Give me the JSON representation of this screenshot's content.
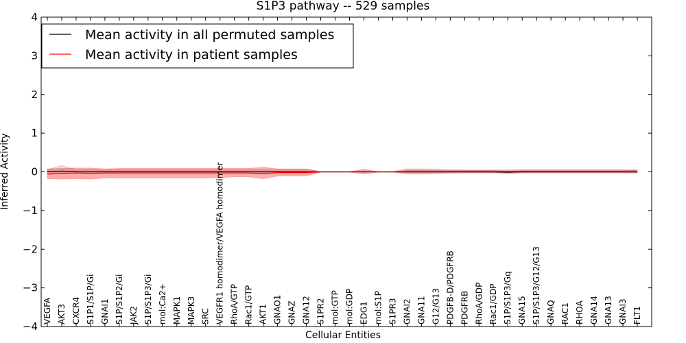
{
  "chart_data": {
    "type": "line",
    "title": "S1P3 pathway -- 529 samples",
    "xlabel": "Cellular Entities",
    "ylabel": "Inferred Activity",
    "ylim": [
      -4,
      4
    ],
    "yticks": [
      "−4",
      "−3",
      "−2",
      "−1",
      "0",
      "1",
      "2",
      "3",
      "4"
    ],
    "categories": [
      "VEGFA",
      "AKT3",
      "CXCR4",
      "S1P1/S1P/Gi",
      "GNAI1",
      "S1P/S1P2/Gi",
      "JAK2",
      "S1P/S1P3/Gi",
      "mol:Ca2+",
      "MAPK1",
      "MAPK3",
      "SRC",
      "VEGFR1 homodimer/VEGFA homodimer",
      "RhoA/GTP",
      "Rac1/GTP",
      "AKT1",
      "GNAO1",
      "GNAZ",
      "GNA12",
      "S1PR2",
      "mol:GTP",
      "mol:GDP",
      "EDG1",
      "mol:S1P",
      "S1PR3",
      "GNAI2",
      "GNA11",
      "G12/G13",
      "PDGFB-D/PDGFRB",
      "PDGFRB",
      "RhoA/GDP",
      "Rac1/GDP",
      "S1P/S1P3/Gq",
      "GNA15",
      "S1P/S1P3/G12/G13",
      "GNAQ",
      "RAC1",
      "RHOA",
      "GNA14",
      "GNA13",
      "GNAI3",
      "FLT1"
    ],
    "series": [
      {
        "name": "Mean activity in all permuted samples",
        "color": "#000000",
        "values": [
          0.0,
          0.02,
          0.0,
          0.0,
          0.0,
          0.0,
          0.0,
          0.0,
          0.0,
          0.0,
          0.0,
          0.0,
          0.0,
          0.0,
          0.0,
          0.0,
          0.0,
          0.0,
          0.0,
          0.0,
          0.0,
          0.0,
          0.0,
          0.0,
          0.0,
          0.0,
          0.0,
          0.0,
          0.0,
          0.0,
          0.0,
          0.0,
          -0.01,
          0.0,
          0.0,
          0.0,
          0.0,
          0.0,
          0.0,
          0.0,
          0.0,
          0.0
        ],
        "band_lower": [
          -0.03,
          -0.05,
          -0.03,
          -0.03,
          -0.03,
          -0.03,
          -0.03,
          -0.03,
          -0.03,
          -0.03,
          -0.03,
          -0.03,
          -0.03,
          -0.03,
          -0.03,
          -0.03,
          -0.03,
          -0.03,
          -0.03,
          -0.01,
          -0.01,
          -0.01,
          -0.01,
          -0.01,
          -0.01,
          -0.02,
          -0.02,
          -0.02,
          -0.02,
          -0.02,
          -0.02,
          -0.02,
          -0.04,
          -0.02,
          -0.02,
          -0.02,
          -0.02,
          -0.02,
          -0.02,
          -0.02,
          -0.02,
          -0.03
        ],
        "band_upper": [
          0.06,
          0.16,
          0.06,
          0.06,
          0.06,
          0.06,
          0.06,
          0.06,
          0.06,
          0.06,
          0.06,
          0.06,
          0.06,
          0.06,
          0.06,
          0.06,
          0.06,
          0.06,
          0.06,
          0.01,
          0.01,
          0.01,
          0.01,
          0.01,
          0.01,
          0.03,
          0.03,
          0.03,
          0.03,
          0.03,
          0.03,
          0.03,
          0.02,
          0.03,
          0.03,
          0.03,
          0.03,
          0.03,
          0.03,
          0.03,
          0.03,
          0.04
        ]
      },
      {
        "name": "Mean activity in patient samples",
        "color": "#ff0000",
        "values": [
          -0.06,
          -0.04,
          -0.03,
          -0.04,
          -0.03,
          -0.03,
          -0.03,
          -0.03,
          -0.03,
          -0.03,
          -0.03,
          -0.03,
          -0.03,
          -0.03,
          -0.03,
          -0.05,
          -0.02,
          -0.02,
          -0.02,
          0.0,
          0.0,
          0.0,
          0.01,
          0.0,
          0.0,
          0.01,
          0.01,
          0.01,
          0.01,
          0.01,
          0.01,
          0.01,
          0.01,
          0.01,
          0.01,
          0.01,
          0.01,
          0.01,
          0.01,
          0.01,
          0.01,
          0.01
        ],
        "band_lower": [
          -0.18,
          -0.19,
          -0.18,
          -0.19,
          -0.16,
          -0.16,
          -0.16,
          -0.16,
          -0.16,
          -0.16,
          -0.16,
          -0.16,
          -0.15,
          -0.13,
          -0.13,
          -0.18,
          -0.11,
          -0.11,
          -0.11,
          -0.01,
          -0.01,
          -0.01,
          -0.06,
          -0.01,
          -0.01,
          -0.06,
          -0.06,
          -0.05,
          -0.04,
          -0.03,
          -0.03,
          -0.03,
          -0.04,
          -0.03,
          -0.03,
          -0.03,
          -0.03,
          -0.03,
          -0.03,
          -0.03,
          -0.03,
          -0.03
        ],
        "band_upper": [
          0.08,
          0.09,
          0.1,
          0.1,
          0.08,
          0.09,
          0.09,
          0.09,
          0.09,
          0.09,
          0.09,
          0.09,
          0.09,
          0.09,
          0.09,
          0.12,
          0.08,
          0.08,
          0.08,
          0.01,
          0.01,
          0.01,
          0.07,
          0.01,
          0.01,
          0.08,
          0.08,
          0.07,
          0.06,
          0.05,
          0.05,
          0.05,
          0.05,
          0.06,
          0.06,
          0.06,
          0.06,
          0.06,
          0.06,
          0.06,
          0.06,
          0.06
        ]
      }
    ],
    "legend": {
      "placement": "top-left",
      "entries": [
        "Mean activity in all permuted samples",
        "Mean activity in patient samples"
      ]
    }
  }
}
